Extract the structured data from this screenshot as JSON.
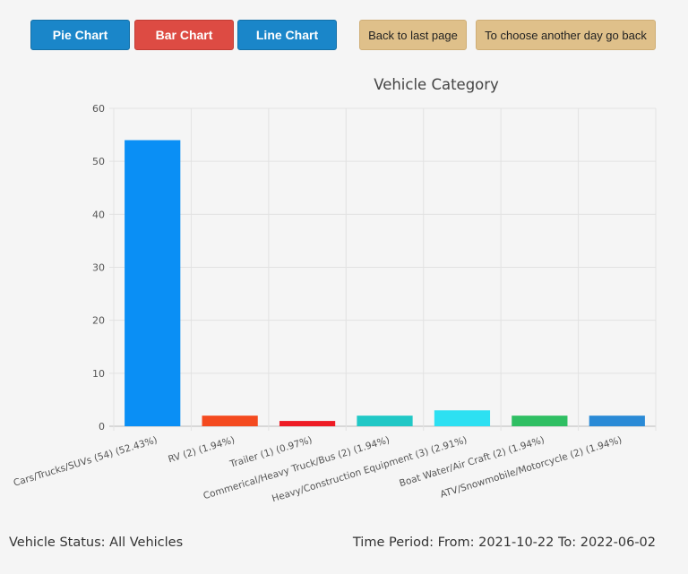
{
  "toolbar": {
    "pie_label": "Pie Chart",
    "bar_label": "Bar Chart",
    "line_label": "Line Chart",
    "back_label": "Back to last page",
    "choose_day_label": "To choose another day go back"
  },
  "chart_data": {
    "type": "bar",
    "title": "Vehicle Category",
    "categories": [
      "Cars/Trucks/SUVs (54) (52.43%)",
      "RV (2) (1.94%)",
      "Trailer (1) (0.97%)",
      "Commerical/Heavy Truck/Bus (2) (1.94%)",
      "Heavy/Construction Equipment (3) (2.91%)",
      "Boat Water/Air Craft  (2) (1.94%)",
      "ATV/Snowmobile/Motorcycle (2) (1.94%)"
    ],
    "values": [
      54,
      2,
      1,
      2,
      3,
      2,
      2
    ],
    "colors": [
      "#0a8ff5",
      "#f44a1f",
      "#ee1b24",
      "#21c8c6",
      "#2de0f2",
      "#2fbf63",
      "#2a8ad6"
    ],
    "xlabel": "",
    "ylabel": "",
    "ylim": [
      0,
      60
    ],
    "yticks": [
      0,
      10,
      20,
      30,
      40,
      50,
      60
    ],
    "grid": true,
    "legend": "none"
  },
  "footer": {
    "status": "Vehicle Status: All Vehicles",
    "period": "Time Period: From: 2021-10-22 To: 2022-06-02"
  }
}
